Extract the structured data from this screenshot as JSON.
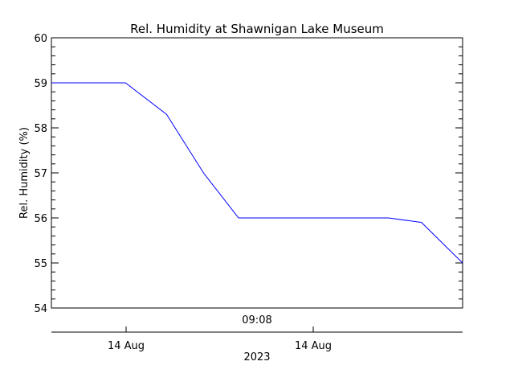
{
  "chart_data": {
    "type": "line",
    "title": "Rel. Humidity at Shawnigan Lake Museum",
    "ylabel": "Rel. Humidity (%)",
    "ylim": [
      54,
      60
    ],
    "yticks": [
      "54",
      "55",
      "56",
      "57",
      "58",
      "59",
      "60"
    ],
    "x_axis_upper": {
      "tick_label": "09:08"
    },
    "x_axis_lower": {
      "tick_labels": [
        "14 Aug",
        "14 Aug"
      ],
      "label": "2023"
    },
    "grid": false,
    "line_color": "#0000ff",
    "series": [
      {
        "x": [
          0,
          0.18,
          0.28,
          0.37,
          0.455,
          0.6,
          0.82,
          0.9,
          1.0
        ],
        "values": [
          59.0,
          59.0,
          58.3,
          57.0,
          56.0,
          56.0,
          56.0,
          55.9,
          55.0
        ]
      }
    ]
  }
}
